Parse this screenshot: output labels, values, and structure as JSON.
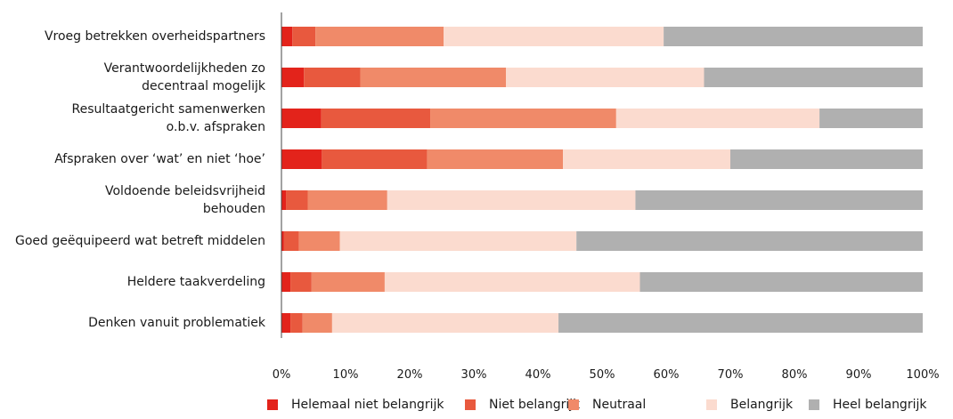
{
  "chart_data": {
    "type": "bar",
    "orientation": "horizontal",
    "stacked": "percent",
    "title": "",
    "xlabel": "",
    "ylabel": "",
    "xlim": [
      0,
      100
    ],
    "x_ticks": [
      "0%",
      "10%",
      "20%",
      "30%",
      "40%",
      "50%",
      "60%",
      "70%",
      "80%",
      "90%",
      "100%"
    ],
    "grid": false,
    "legend_position": "bottom",
    "categories": [
      [
        "Vroeg betrekken overheidspartners"
      ],
      [
        "Verantwoordelijkheden zo",
        "decentraal mogelijk"
      ],
      [
        "Resultaatgericht samenwerken",
        "o.b.v. afspraken"
      ],
      [
        "Afspraken over ‘wat’ en niet ‘hoe’"
      ],
      [
        "Voldoende beleidsvrijheid",
        "behouden"
      ],
      [
        "Goed geëquipeerd wat betreft middelen"
      ],
      [
        "Heldere taakverdeling"
      ],
      [
        "Denken vanuit problematiek"
      ]
    ],
    "series": [
      {
        "name": "Helemaal niet belangrijk",
        "color": "#e3231b",
        "values": [
          1.7,
          3.5,
          6.2,
          6.3,
          0.7,
          0.4,
          1.4,
          1.4
        ]
      },
      {
        "name": "Niet belangrijk",
        "color": "#e8593e",
        "values": [
          3.6,
          8.8,
          17.0,
          16.4,
          3.4,
          2.3,
          3.3,
          1.9
        ]
      },
      {
        "name": "Neutraal",
        "color": "#f08a69",
        "values": [
          20.0,
          22.7,
          29.0,
          21.2,
          12.4,
          6.4,
          11.4,
          4.6
        ]
      },
      {
        "name": "Belangrijk",
        "color": "#fbdbcf",
        "values": [
          34.3,
          30.9,
          31.7,
          26.1,
          38.7,
          36.9,
          39.8,
          35.3
        ]
      },
      {
        "name": "Heel belangrijk",
        "color": "#b0b0b0",
        "values": [
          40.4,
          34.1,
          16.1,
          30.0,
          44.8,
          54.0,
          44.1,
          56.8
        ]
      }
    ]
  }
}
